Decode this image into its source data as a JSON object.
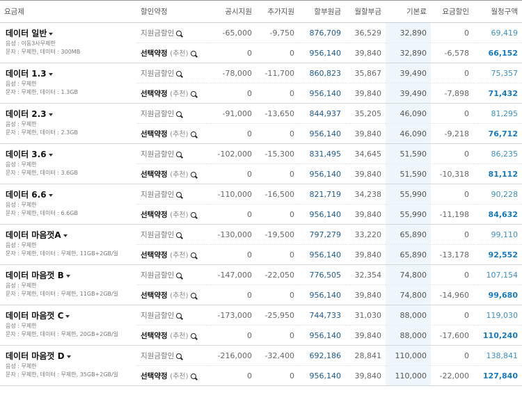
{
  "headers": [
    "요금제",
    "할인약정",
    "공시지원",
    "추가지원",
    "할부원금",
    "월할부금",
    "기본료",
    "요금할인",
    "월청구액"
  ],
  "labels": {
    "support_discount": "지원금할인",
    "select_contract": "선택약정",
    "recommend": "(추천)"
  },
  "plans": [
    {
      "name": "데이터 일반",
      "lines": [
        "음성 : 이동3사무제한",
        "문자 : 무제한, 데이터 : 300MB"
      ],
      "support": {
        "public": "-65,000",
        "extra": "-9,750",
        "principal": "876,709",
        "monthly": "36,529",
        "base": "32,890",
        "discount": "0",
        "total": "69,419"
      },
      "select": {
        "public": "0",
        "extra": "0",
        "principal": "956,140",
        "monthly": "39,840",
        "base": "32,890",
        "discount": "-6,578",
        "total": "66,152"
      }
    },
    {
      "name": "데이터 1.3",
      "lines": [
        "음성 : 무제한",
        "문자 : 무제한, 데이터 : 1.3GB"
      ],
      "support": {
        "public": "-78,000",
        "extra": "-11,700",
        "principal": "860,823",
        "monthly": "35,867",
        "base": "39,490",
        "discount": "0",
        "total": "75,357"
      },
      "select": {
        "public": "0",
        "extra": "0",
        "principal": "956,140",
        "monthly": "39,840",
        "base": "39,490",
        "discount": "-7,898",
        "total": "71,432"
      }
    },
    {
      "name": "데이터 2.3",
      "lines": [
        "음성 : 무제한",
        "문자 : 무제한, 데이터 : 2.3GB"
      ],
      "support": {
        "public": "-91,000",
        "extra": "-13,650",
        "principal": "844,937",
        "monthly": "35,205",
        "base": "46,090",
        "discount": "0",
        "total": "81,295"
      },
      "select": {
        "public": "0",
        "extra": "0",
        "principal": "956,140",
        "monthly": "39,840",
        "base": "46,090",
        "discount": "-9,218",
        "total": "76,712"
      }
    },
    {
      "name": "데이터 3.6",
      "lines": [
        "음성 : 무제한",
        "문자 : 무제한, 데이터 : 3.6GB"
      ],
      "support": {
        "public": "-102,000",
        "extra": "-15,300",
        "principal": "831,495",
        "monthly": "34,645",
        "base": "51,590",
        "discount": "0",
        "total": "86,235"
      },
      "select": {
        "public": "0",
        "extra": "0",
        "principal": "956,140",
        "monthly": "39,840",
        "base": "51,590",
        "discount": "-10,318",
        "total": "81,112"
      }
    },
    {
      "name": "데이터 6.6",
      "lines": [
        "음성 : 무제한",
        "문자 : 무제한, 데이터 : 6.6GB"
      ],
      "support": {
        "public": "-110,000",
        "extra": "-16,500",
        "principal": "821,719",
        "monthly": "34,238",
        "base": "55,990",
        "discount": "0",
        "total": "90,228"
      },
      "select": {
        "public": "0",
        "extra": "0",
        "principal": "956,140",
        "monthly": "39,840",
        "base": "55,990",
        "discount": "-11,198",
        "total": "84,632"
      }
    },
    {
      "name": "데이터 마음껏A",
      "lines": [
        "음성 : 무제한",
        "문자 : 무제한, 데이터 : 무제한, 11GB+2GB/일"
      ],
      "support": {
        "public": "-130,000",
        "extra": "-19,500",
        "principal": "797,279",
        "monthly": "33,220",
        "base": "65,890",
        "discount": "0",
        "total": "99,110"
      },
      "select": {
        "public": "0",
        "extra": "0",
        "principal": "956,140",
        "monthly": "39,840",
        "base": "65,890",
        "discount": "-13,178",
        "total": "92,552"
      }
    },
    {
      "name": "데이터 마음껏 B",
      "lines": [
        "음성 : 무제한",
        "문자 : 무제한, 데이터 : 무제한, 11GB+2GB/일"
      ],
      "support": {
        "public": "-147,000",
        "extra": "-22,050",
        "principal": "776,505",
        "monthly": "32,354",
        "base": "74,800",
        "discount": "0",
        "total": "107,154"
      },
      "select": {
        "public": "0",
        "extra": "0",
        "principal": "956,140",
        "monthly": "39,840",
        "base": "74,800",
        "discount": "-14,960",
        "total": "99,680"
      }
    },
    {
      "name": "데이터 마음껏 C",
      "lines": [
        "음성 : 무제한",
        "문자 : 무제한, 데이터 : 무제한, 20GB+2GB/일"
      ],
      "support": {
        "public": "-173,000",
        "extra": "-25,950",
        "principal": "744,733",
        "monthly": "31,030",
        "base": "88,000",
        "discount": "0",
        "total": "119,030"
      },
      "select": {
        "public": "0",
        "extra": "0",
        "principal": "956,140",
        "monthly": "39,840",
        "base": "88,000",
        "discount": "-17,600",
        "total": "110,240"
      }
    },
    {
      "name": "데이터 마음껏 D",
      "lines": [
        "음성 : 무제한",
        "문자 : 무제한, 데이터 : 무제한, 35GB+2GB/일"
      ],
      "support": {
        "public": "-216,000",
        "extra": "-32,400",
        "principal": "692,186",
        "monthly": "28,841",
        "base": "110,000",
        "discount": "0",
        "total": "138,841"
      },
      "select": {
        "public": "0",
        "extra": "0",
        "principal": "956,140",
        "monthly": "39,840",
        "base": "110,000",
        "discount": "-22,000",
        "total": "127,840"
      }
    }
  ]
}
